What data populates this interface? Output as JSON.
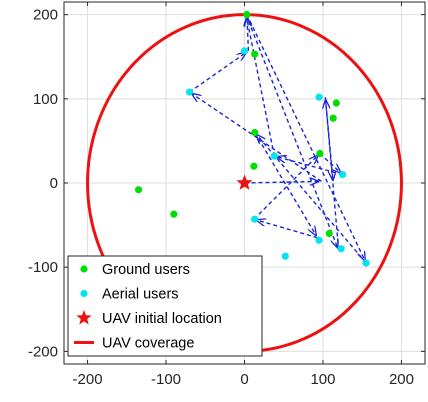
{
  "chart_data": {
    "type": "scatter",
    "title": "",
    "xlabel": "",
    "ylabel": "",
    "xlim": [
      -230,
      230
    ],
    "ylim": [
      -215,
      215
    ],
    "xticks": [
      -200,
      -100,
      0,
      100,
      200
    ],
    "yticks": [
      -200,
      -100,
      0,
      100,
      200
    ],
    "xtick_labels": [
      "-200",
      "-100",
      "0",
      "100",
      "200"
    ],
    "ytick_labels": [
      "-200",
      "-100",
      "0",
      "100",
      "200"
    ],
    "grid": true,
    "legend_position": "bottom-left",
    "series": [
      {
        "name": "Ground users",
        "kind": "points",
        "color": "#00e000",
        "points": [
          [
            3,
            200
          ],
          [
            13,
            153
          ],
          [
            13,
            60
          ],
          [
            12,
            20
          ],
          [
            -135,
            -8
          ],
          [
            -90,
            -37
          ],
          [
            96,
            35
          ],
          [
            117,
            95
          ],
          [
            113,
            77
          ],
          [
            108,
            -60
          ]
        ]
      },
      {
        "name": "Aerial users",
        "kind": "points",
        "color": "#00e5ee",
        "points": [
          [
            0,
            157
          ],
          [
            -70,
            108
          ],
          [
            38,
            32
          ],
          [
            95,
            102
          ],
          [
            125,
            10
          ],
          [
            13,
            -43
          ],
          [
            52,
            -87
          ],
          [
            95,
            -68
          ],
          [
            123,
            -78
          ],
          [
            155,
            -95
          ]
        ]
      },
      {
        "name": "UAV initial location",
        "kind": "star",
        "color": "#ee1111",
        "points": [
          [
            0,
            0
          ]
        ]
      },
      {
        "name": "UAV coverage",
        "kind": "circle",
        "color": "#ee1111",
        "center": [
          0,
          0
        ],
        "radius": 200
      }
    ],
    "trajectory": {
      "color": "#1a25d6",
      "style": "dashed-arrows",
      "path": [
        [
          0,
          0
        ],
        [
          98,
          2
        ],
        [
          -70,
          108
        ],
        [
          5,
          157
        ],
        [
          3,
          200
        ],
        [
          155,
          -95
        ],
        [
          13,
          60
        ],
        [
          93,
          -65
        ],
        [
          12,
          -43
        ],
        [
          96,
          35
        ],
        [
          125,
          10
        ],
        [
          38,
          32
        ],
        [
          2,
          200
        ],
        [
          120,
          -80
        ],
        [
          103,
          102
        ],
        [
          113,
          0
        ]
      ]
    }
  }
}
